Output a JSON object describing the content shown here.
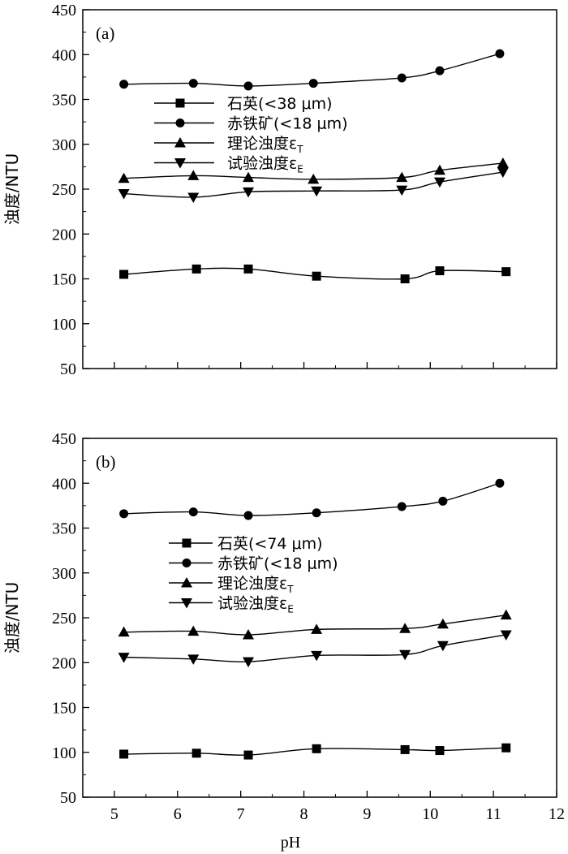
{
  "chart_data": [
    {
      "type": "line",
      "panel_label": "(a)",
      "ylabel": "浊度/NTU",
      "xlabel": "",
      "xlim": [
        4.5,
        12
      ],
      "ylim": [
        50,
        450
      ],
      "xticks": [
        5,
        6,
        7,
        8,
        9,
        10,
        11,
        12
      ],
      "yticks": [
        50,
        100,
        150,
        200,
        250,
        300,
        350,
        400,
        450
      ],
      "grid": false,
      "legend_position": "center-left",
      "series": [
        {
          "name": "石英(<38 μm)",
          "marker": "square",
          "x": [
            5.15,
            6.3,
            7.12,
            8.2,
            9.6,
            10.15,
            11.2
          ],
          "values": [
            155,
            161,
            161,
            153,
            150,
            159,
            158
          ]
        },
        {
          "name": "赤铁矿(<18 μm)",
          "marker": "circle",
          "x": [
            5.15,
            6.25,
            7.12,
            8.15,
            9.55,
            10.15,
            11.1
          ],
          "values": [
            367,
            368,
            365,
            368,
            374,
            382,
            401
          ]
        },
        {
          "name": "理论浊度εT",
          "marker": "triangle-up",
          "x": [
            5.15,
            6.25,
            7.12,
            8.15,
            9.55,
            10.15,
            11.15
          ],
          "values": [
            262,
            265,
            263,
            261,
            263,
            271,
            279
          ]
        },
        {
          "name": "试验浊度εE",
          "marker": "triangle-down",
          "x": [
            5.15,
            6.25,
            7.12,
            8.2,
            9.55,
            10.15,
            11.15
          ],
          "values": [
            245,
            241,
            247,
            248,
            249,
            258,
            269
          ]
        }
      ]
    },
    {
      "type": "line",
      "panel_label": "(b)",
      "ylabel": "浊度/NTU",
      "xlabel": "pH",
      "xlim": [
        4.5,
        12
      ],
      "ylim": [
        50,
        450
      ],
      "xticks": [
        5,
        6,
        7,
        8,
        9,
        10,
        11,
        12
      ],
      "yticks": [
        50,
        100,
        150,
        200,
        250,
        300,
        350,
        400,
        450
      ],
      "grid": false,
      "legend_position": "center-left",
      "series": [
        {
          "name": "石英(<74 μm)",
          "marker": "square",
          "x": [
            5.15,
            6.3,
            7.12,
            8.2,
            9.6,
            10.15,
            11.2
          ],
          "values": [
            98,
            99,
            97,
            104,
            103,
            102,
            105
          ]
        },
        {
          "name": "赤铁矿(<18 μm)",
          "marker": "circle",
          "x": [
            5.15,
            6.25,
            7.12,
            8.2,
            9.55,
            10.2,
            11.1
          ],
          "values": [
            366,
            368,
            364,
            367,
            374,
            380,
            400
          ]
        },
        {
          "name": "理论浊度εT",
          "marker": "triangle-up",
          "x": [
            5.15,
            6.25,
            7.12,
            8.2,
            9.6,
            10.2,
            11.2
          ],
          "values": [
            234,
            235,
            231,
            237,
            238,
            243,
            253
          ]
        },
        {
          "name": "试验浊度εE",
          "marker": "triangle-down",
          "x": [
            5.15,
            6.25,
            7.12,
            8.2,
            9.6,
            10.2,
            11.2
          ],
          "values": [
            206,
            204,
            201,
            208,
            209,
            219,
            231
          ]
        }
      ]
    }
  ]
}
